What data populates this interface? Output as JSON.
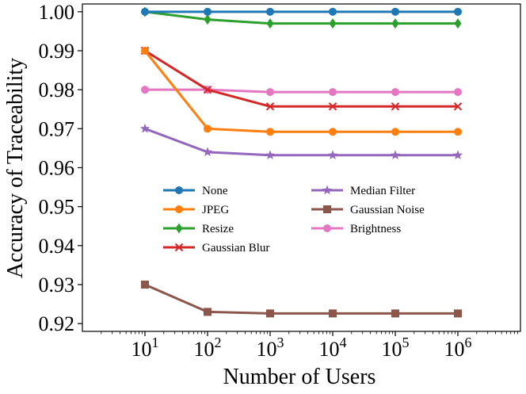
{
  "chart_data": {
    "type": "line",
    "xscale": "log",
    "xlabel": "Number of Users",
    "ylabel": "Accuracy of Traceability",
    "x": [
      10,
      100,
      1000,
      10000,
      100000,
      1000000
    ],
    "x_tick_labels": [
      {
        "base": "10",
        "exp": "1"
      },
      {
        "base": "10",
        "exp": "2"
      },
      {
        "base": "10",
        "exp": "3"
      },
      {
        "base": "10",
        "exp": "4"
      },
      {
        "base": "10",
        "exp": "5"
      },
      {
        "base": "10",
        "exp": "6"
      }
    ],
    "xlim_log10": [
      0,
      7
    ],
    "ylim": [
      0.918,
      1.002
    ],
    "y_ticks": [
      0.92,
      0.93,
      0.94,
      0.95,
      0.96,
      0.97,
      0.98,
      0.99,
      1.0
    ],
    "y_tick_labels": [
      "0.92",
      "0.93",
      "0.94",
      "0.95",
      "0.96",
      "0.97",
      "0.98",
      "0.99",
      "1.00"
    ],
    "grid": false,
    "legend_position": "center",
    "series": [
      {
        "name": "None",
        "color": "#1f77b4",
        "marker": "circle",
        "values": [
          1.0,
          1.0,
          1.0,
          1.0,
          1.0,
          1.0
        ]
      },
      {
        "name": "JPEG",
        "color": "#ff7f0e",
        "marker": "circle",
        "values": [
          0.99,
          0.97,
          0.9692,
          0.9692,
          0.9692,
          0.9692
        ]
      },
      {
        "name": "Resize",
        "color": "#2ca02c",
        "marker": "diamond",
        "values": [
          1.0,
          0.998,
          0.997,
          0.997,
          0.997,
          0.997
        ]
      },
      {
        "name": "Gaussian Blur",
        "color": "#d62728",
        "marker": "x",
        "values": [
          0.99,
          0.98,
          0.9757,
          0.9757,
          0.9757,
          0.9757
        ]
      },
      {
        "name": "Median Filter",
        "color": "#9467bd",
        "marker": "star",
        "values": [
          0.97,
          0.964,
          0.9632,
          0.9632,
          0.9632,
          0.9632
        ]
      },
      {
        "name": "Gaussian Noise",
        "color": "#8c564b",
        "marker": "square",
        "values": [
          0.93,
          0.923,
          0.9226,
          0.9226,
          0.9226,
          0.9226
        ]
      },
      {
        "name": "Brightness",
        "color": "#e377c2",
        "marker": "circle",
        "values": [
          0.98,
          0.98,
          0.9794,
          0.9794,
          0.9794,
          0.9794
        ]
      }
    ],
    "draw_order": [
      4,
      5,
      6,
      3,
      1,
      2,
      0
    ]
  }
}
